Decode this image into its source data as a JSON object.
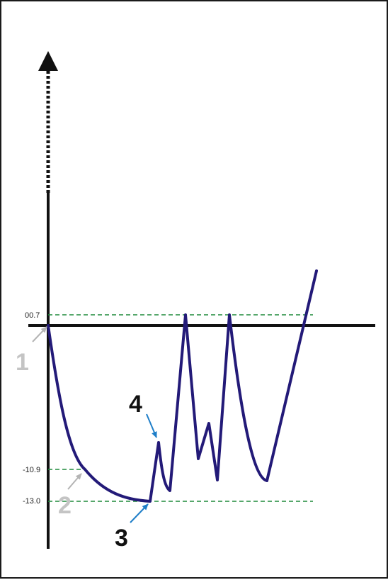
{
  "diagram": {
    "y_levels": [
      {
        "label": "00.7",
        "value": 0.7
      },
      {
        "label": "-10.9",
        "value": -10.9
      },
      {
        "label": "-13.0",
        "value": -13.0
      }
    ],
    "markers": [
      {
        "label": "1",
        "color": "#c4c4c4"
      },
      {
        "label": "2",
        "color": "#c4c4c4"
      },
      {
        "label": "3",
        "color": "#111111"
      },
      {
        "label": "4",
        "color": "#111111"
      }
    ],
    "colors": {
      "curve": "#231a78",
      "reference_lines": "#1f8a3a",
      "axes": "#111111",
      "light_arrows": "#b4b4b4",
      "dark_arrows": "#1e7ec8"
    }
  }
}
